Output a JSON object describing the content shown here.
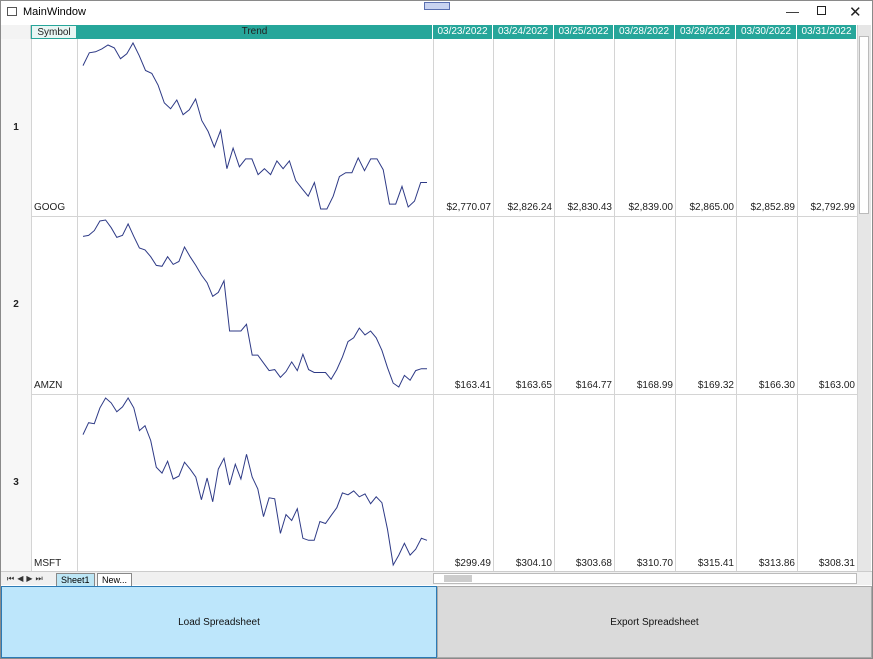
{
  "window": {
    "title": "MainWindow"
  },
  "grid": {
    "headers": [
      "Symbol",
      "Trend",
      "03/23/2022",
      "03/24/2022",
      "03/25/2022",
      "03/28/2022",
      "03/29/2022",
      "03/30/2022",
      "03/31/2022"
    ],
    "rows": [
      {
        "number": "1",
        "symbol": "GOOG",
        "trend": [
          2944,
          2970,
          2972,
          2978,
          2986,
          2980,
          2958,
          2968,
          2990,
          2964,
          2934,
          2928,
          2904,
          2868,
          2856,
          2874,
          2844,
          2854,
          2876,
          2832,
          2810,
          2778,
          2812,
          2734,
          2776,
          2738,
          2754,
          2754,
          2722,
          2734,
          2722,
          2750,
          2734,
          2750,
          2710,
          2694,
          2678,
          2706,
          2652,
          2652,
          2678,
          2718,
          2726,
          2726,
          2756,
          2730,
          2754,
          2754,
          2732,
          2662,
          2662,
          2698,
          2656,
          2668,
          2706,
          2706
        ],
        "prices": [
          "$2,770.07",
          "$2,826.24",
          "$2,830.43",
          "$2,839.00",
          "$2,865.00",
          "$2,852.89",
          "$2,792.99"
        ]
      },
      {
        "number": "2",
        "symbol": "AMZN",
        "trend": [
          186.6,
          186.8,
          187.8,
          189.8,
          190,
          188.4,
          186.4,
          186.8,
          189.2,
          186.6,
          184.2,
          183.8,
          182.4,
          180.6,
          180.4,
          182.4,
          180.8,
          181.4,
          184.4,
          182.4,
          180.6,
          178.6,
          177,
          174.2,
          175,
          177.4,
          167,
          167,
          167,
          168.4,
          162,
          162,
          160.4,
          158.8,
          159,
          157.4,
          158.6,
          160.6,
          158.8,
          162.2,
          159,
          158.4,
          158.4,
          158.4,
          157,
          159,
          161.6,
          164.8,
          165.6,
          167.6,
          166.2,
          167,
          165.6,
          163,
          159.4,
          156.2,
          155.4,
          157.8,
          156.8,
          158.8,
          159.2,
          159.2
        ],
        "prices": [
          "$163.41",
          "$163.65",
          "$164.77",
          "$168.99",
          "$169.32",
          "$166.30",
          "$163.00"
        ]
      },
      {
        "number": "3",
        "symbol": "MSFT",
        "trend": [
          332.6,
          335,
          334.8,
          338,
          340,
          339,
          337.2,
          338.2,
          340,
          338,
          333.4,
          334.4,
          331.4,
          326,
          324.8,
          327.2,
          323.6,
          324.2,
          327,
          325.6,
          324,
          319.4,
          323.8,
          319,
          325.6,
          327.8,
          322.4,
          326.6,
          323.6,
          328.6,
          324,
          321.6,
          316,
          319.8,
          319.6,
          312.6,
          316.4,
          315.2,
          317.6,
          311.6,
          311.2,
          311.2,
          315,
          314.6,
          316.2,
          317.8,
          320.8,
          320.4,
          321.2,
          320,
          320.6,
          318.6,
          320,
          318.8,
          313.4,
          306.2,
          308.2,
          310.6,
          308.2,
          309.4,
          311.6,
          311.2
        ],
        "prices": [
          "$299.49",
          "$304.10",
          "$303.68",
          "$310.70",
          "$315.41",
          "$313.86",
          "$308.31"
        ]
      }
    ]
  },
  "tabs": [
    "Sheet1",
    "New..."
  ],
  "buttons": [
    "Load Spreadsheet",
    "Export Spreadsheet"
  ]
}
